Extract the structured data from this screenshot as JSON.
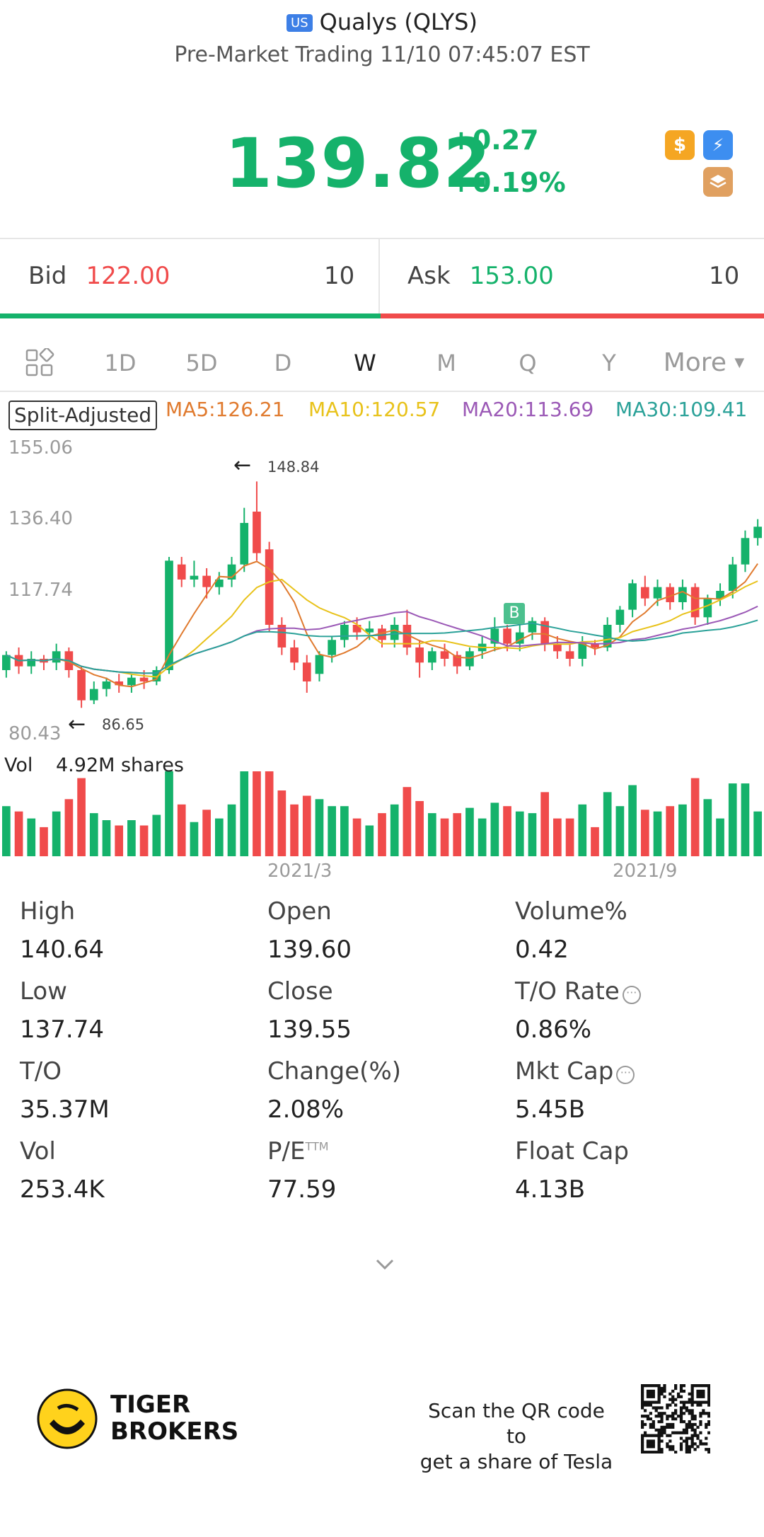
{
  "header": {
    "badge": "US",
    "title": "Qualys (QLYS)",
    "subtitle": "Pre-Market Trading 11/10 07:45:07 EST"
  },
  "quote": {
    "price": "139.82",
    "change": "+0.27",
    "change_pct": "+0.19%",
    "color_up": "#15b26b",
    "color_down": "#f04b4b"
  },
  "icons": [
    "dollar-icon",
    "lightning-icon",
    "layers-icon"
  ],
  "bid": {
    "label": "Bid",
    "price": "122.00",
    "size": "10"
  },
  "ask": {
    "label": "Ask",
    "price": "153.00",
    "size": "10"
  },
  "tabs": [
    {
      "label": "1D"
    },
    {
      "label": "5D"
    },
    {
      "label": "D"
    },
    {
      "label": "W",
      "active": true
    },
    {
      "label": "M"
    },
    {
      "label": "Q"
    },
    {
      "label": "Y"
    },
    {
      "label": "More"
    }
  ],
  "ma_legend": {
    "split": "Split-Adjusted",
    "ma5": "MA5:126.21",
    "ma10": "MA10:120.57",
    "ma20": "MA20:113.69",
    "ma30": "MA30:109.41",
    "colors": {
      "ma5": "#e07a2e",
      "ma10": "#e8c21a",
      "ma20": "#9b59b6",
      "ma30": "#2aa198"
    }
  },
  "chart_data": {
    "type": "candlestick",
    "y_ticks": [
      "155.06",
      "136.40",
      "117.74",
      "80.43"
    ],
    "ylim": [
      80.43,
      155.06
    ],
    "x_ticks": [
      "2021/3",
      "2021/9"
    ],
    "high_marker": "148.84",
    "low_marker": "86.65",
    "signal_marker": "B",
    "candles": [
      [
        96,
        100,
        94,
        101
      ],
      [
        100,
        97,
        95,
        102
      ],
      [
        97,
        99,
        95,
        101
      ],
      [
        99,
        98,
        96,
        100
      ],
      [
        98,
        101,
        96,
        103
      ],
      [
        101,
        96,
        94,
        102
      ],
      [
        96,
        88,
        86,
        97
      ],
      [
        88,
        91,
        87,
        93
      ],
      [
        91,
        93,
        89,
        94
      ],
      [
        93,
        92,
        90,
        95
      ],
      [
        92,
        94,
        90,
        95
      ],
      [
        94,
        93,
        91,
        96
      ],
      [
        93,
        96,
        92,
        97
      ],
      [
        96,
        125,
        95,
        126
      ],
      [
        124,
        120,
        118,
        126
      ],
      [
        120,
        121,
        118,
        125
      ],
      [
        121,
        118,
        115,
        123
      ],
      [
        118,
        120,
        116,
        122
      ],
      [
        120,
        124,
        118,
        126
      ],
      [
        124,
        135,
        122,
        139
      ],
      [
        138,
        127,
        125,
        146
      ],
      [
        128,
        108,
        106,
        130
      ],
      [
        108,
        102,
        100,
        110
      ],
      [
        102,
        98,
        96,
        104
      ],
      [
        98,
        93,
        90,
        100
      ],
      [
        95,
        100,
        93,
        101
      ],
      [
        100,
        104,
        98,
        105
      ],
      [
        104,
        108,
        102,
        109
      ],
      [
        108,
        106,
        104,
        110
      ],
      [
        106,
        107,
        104,
        109
      ],
      [
        107,
        104,
        102,
        108
      ],
      [
        104,
        108,
        102,
        110
      ],
      [
        108,
        102,
        100,
        112
      ],
      [
        102,
        98,
        94,
        104
      ],
      [
        98,
        101,
        96,
        102
      ],
      [
        101,
        99,
        97,
        103
      ],
      [
        100,
        97,
        95,
        101
      ],
      [
        97,
        101,
        96,
        102
      ],
      [
        101,
        103,
        99,
        105
      ],
      [
        103,
        107,
        101,
        110
      ],
      [
        107,
        103,
        101,
        108
      ],
      [
        103,
        106,
        101,
        108
      ],
      [
        106,
        109,
        104,
        110
      ],
      [
        109,
        103,
        101,
        110
      ],
      [
        103,
        101,
        99,
        105
      ],
      [
        101,
        99,
        97,
        103
      ],
      [
        99,
        103,
        97,
        105
      ],
      [
        103,
        102,
        100,
        104
      ],
      [
        102,
        108,
        101,
        110
      ],
      [
        108,
        112,
        106,
        113
      ],
      [
        112,
        119,
        110,
        120
      ],
      [
        118,
        115,
        113,
        121
      ],
      [
        115,
        118,
        113,
        120
      ],
      [
        118,
        114,
        112,
        119
      ],
      [
        114,
        118,
        112,
        120
      ],
      [
        118,
        110,
        108,
        119
      ],
      [
        110,
        115,
        108,
        116
      ],
      [
        115,
        117,
        113,
        119
      ],
      [
        117,
        124,
        115,
        126
      ],
      [
        124,
        131,
        122,
        133
      ],
      [
        131,
        134,
        129,
        136
      ]
    ],
    "volume_label": "Vol",
    "volume_value": "4.92M shares"
  },
  "stats": [
    {
      "label": "High",
      "value": "140.64"
    },
    {
      "label": "Open",
      "value": "139.60"
    },
    {
      "label": "Volume%",
      "value": "0.42"
    },
    {
      "label": "Low",
      "value": "137.74"
    },
    {
      "label": "Close",
      "value": "139.55"
    },
    {
      "label": "T/O Rate",
      "value": "0.86%",
      "info": true
    },
    {
      "label": "T/O",
      "value": "35.37M"
    },
    {
      "label": "Change(%)",
      "value": "2.08%"
    },
    {
      "label": "Mkt Cap",
      "value": "5.45B",
      "info": true
    },
    {
      "label": "Vol",
      "value": "253.4K"
    },
    {
      "label": "P/E",
      "sup": "TTM",
      "value": "77.59"
    },
    {
      "label": "Float Cap",
      "value": "4.13B"
    }
  ],
  "footer": {
    "brand_line1": "TIGER",
    "brand_line2": "BROKERS",
    "qr_text_line1": "Scan the QR code to",
    "qr_text_line2": "get a share of Tesla"
  }
}
